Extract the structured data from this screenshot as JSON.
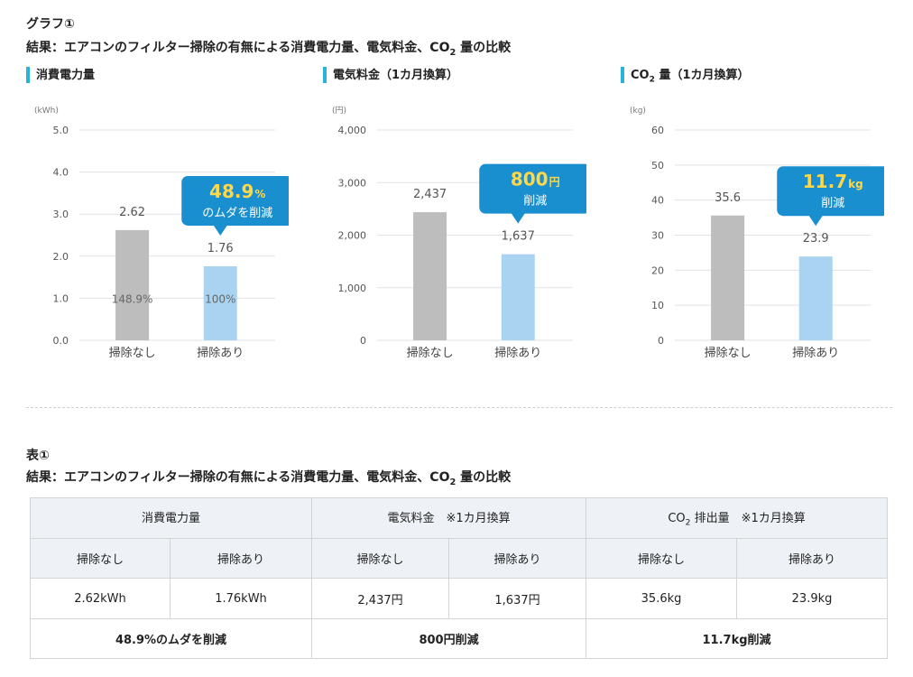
{
  "graph_section": {
    "label": "グラフ①",
    "title_before": "結果：エアコンのフィルター掃除の有無による消費電力量、電気料金、CO",
    "title_sub": "2",
    "title_after": " 量の比較"
  },
  "table_section": {
    "label": "表①",
    "title_before": "結果：エアコンのフィルター掃除の有無による消費電力量、電気料金、CO",
    "title_sub": "2",
    "title_after": " 量の比較"
  },
  "chart_data": [
    {
      "type": "bar",
      "title_before": "消費電力量",
      "title_sub": "",
      "title_after": "",
      "unit": "(kWh)",
      "categories": [
        "掃除なし",
        "掃除あり"
      ],
      "values": [
        2.62,
        1.76
      ],
      "value_labels": [
        "2.62",
        "1.76"
      ],
      "inner_labels": [
        "148.9%",
        "100%"
      ],
      "ylim": [
        0,
        5
      ],
      "yticks": [
        0,
        1,
        2,
        3,
        4,
        5
      ],
      "ytick_labels": [
        "0.0",
        "1.0",
        "2.0",
        "3.0",
        "4.0",
        "5.0"
      ],
      "bar_colors": [
        "#bdbdbd",
        "#a9d3f0"
      ],
      "callout": {
        "big": "48.9",
        "unit": "%",
        "text": "のムダを削減"
      }
    },
    {
      "type": "bar",
      "title_before": "電気料金（1カ月換算）",
      "title_sub": "",
      "title_after": "",
      "unit": "(円)",
      "categories": [
        "掃除なし",
        "掃除あり"
      ],
      "values": [
        2437,
        1637
      ],
      "value_labels": [
        "2,437",
        "1,637"
      ],
      "inner_labels": [
        "",
        ""
      ],
      "ylim": [
        0,
        4000
      ],
      "yticks": [
        0,
        1000,
        2000,
        3000,
        4000
      ],
      "ytick_labels": [
        "0",
        "1,000",
        "2,000",
        "3,000",
        "4,000"
      ],
      "bar_colors": [
        "#bdbdbd",
        "#a9d3f0"
      ],
      "callout": {
        "big": "800",
        "unit": "円",
        "text": "削減"
      }
    },
    {
      "type": "bar",
      "title_before": "CO",
      "title_sub": "2",
      "title_after": " 量（1カ月換算）",
      "unit": "(kg)",
      "categories": [
        "掃除なし",
        "掃除あり"
      ],
      "values": [
        35.6,
        23.9
      ],
      "value_labels": [
        "35.6",
        "23.9"
      ],
      "inner_labels": [
        "",
        ""
      ],
      "ylim": [
        0,
        60
      ],
      "yticks": [
        0,
        10,
        20,
        30,
        40,
        50,
        60
      ],
      "ytick_labels": [
        "0",
        "10",
        "20",
        "30",
        "40",
        "50",
        "60"
      ],
      "bar_colors": [
        "#bdbdbd",
        "#a9d3f0"
      ],
      "callout": {
        "big": "11.7",
        "unit": "kg",
        "text": "削減"
      }
    }
  ],
  "colors": {
    "accent": "#29b3d8",
    "callout_bg": "#1a8fd0",
    "callout_highlight": "#ffd84a",
    "bar_without_cleaning": "#bdbdbd",
    "bar_with_cleaning": "#a9d3f0",
    "table_header_bg": "#eef2f6"
  },
  "table": {
    "groups": [
      {
        "before": "消費電力量",
        "sub": "",
        "after": ""
      },
      {
        "before": "電気料金　※1カ月換算",
        "sub": "",
        "after": ""
      },
      {
        "before": "CO",
        "sub": "2",
        "after": " 排出量　※1カ月換算"
      }
    ],
    "subheaders": [
      "掃除なし",
      "掃除あり",
      "掃除なし",
      "掃除あり",
      "掃除なし",
      "掃除あり"
    ],
    "values": [
      "2.62kWh",
      "1.76kWh",
      "2,437円",
      "1,637円",
      "35.6kg",
      "23.9kg"
    ],
    "reductions": [
      "48.9%のムダを削減",
      "800円削減",
      "11.7kg削減"
    ]
  }
}
